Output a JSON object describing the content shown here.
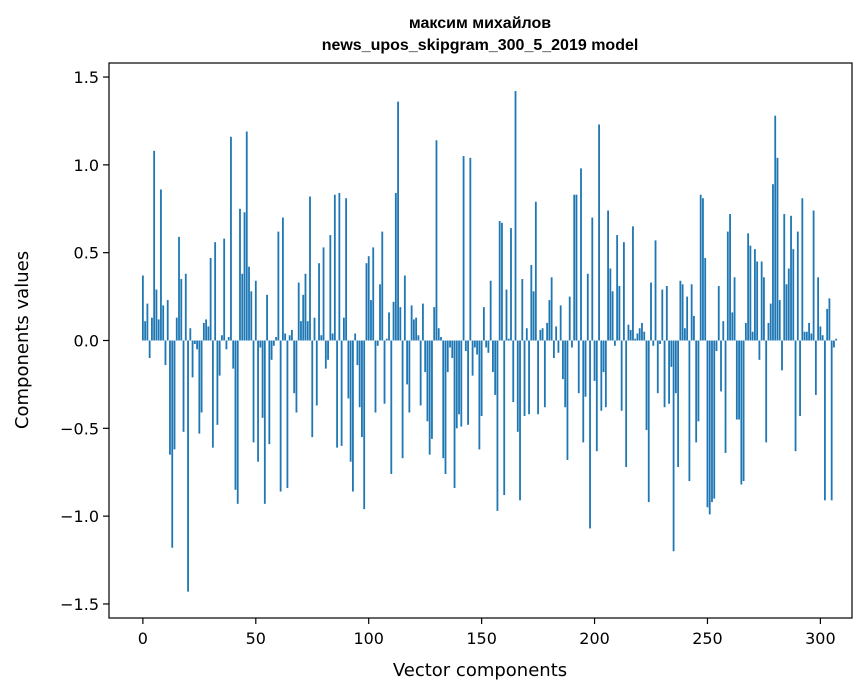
{
  "chart_data": {
    "type": "bar",
    "title": "максим михайлов",
    "subtitle": "news_upos_skipgram_300_5_2019 model",
    "xlabel": "Vector components",
    "ylabel": "Components values",
    "xlim": [
      -15,
      314
    ],
    "ylim": [
      -1.58,
      1.58
    ],
    "xticks": [
      0,
      50,
      100,
      150,
      200,
      250,
      300
    ],
    "xtick_labels": [
      "0",
      "50",
      "100",
      "150",
      "200",
      "250",
      "300"
    ],
    "yticks": [
      -1.5,
      -1.0,
      -0.5,
      0.0,
      0.5,
      1.0,
      1.5
    ],
    "ytick_labels": [
      "−1.5",
      "−1.0",
      "−0.5",
      "0.0",
      "0.5",
      "1.0",
      "1.5"
    ],
    "grid": false,
    "bar_color": "#1f77b4",
    "values": [
      0.37,
      0.11,
      0.21,
      -0.1,
      0.13,
      1.08,
      0.29,
      0.12,
      0.86,
      0.2,
      -0.14,
      0.23,
      -0.65,
      -1.18,
      -0.62,
      0.13,
      0.59,
      0.35,
      -0.52,
      0.38,
      -1.43,
      0.07,
      -0.21,
      -0.02,
      -0.05,
      -0.53,
      -0.41,
      0.1,
      0.12,
      0.08,
      0.47,
      -0.61,
      0.56,
      -0.48,
      -0.2,
      0.03,
      0.58,
      -0.05,
      0.02,
      1.16,
      -0.16,
      -0.85,
      -0.93,
      0.75,
      0.38,
      0.73,
      1.19,
      0.42,
      0.28,
      -0.58,
      0.34,
      -0.69,
      -0.04,
      -0.44,
      -0.93,
      0.26,
      -0.59,
      -0.11,
      -0.03,
      0.02,
      0.62,
      -0.86,
      0.7,
      0.04,
      -0.84,
      0.03,
      0.06,
      -0.3,
      -0.41,
      0.33,
      0.11,
      0.26,
      0.38,
      0.11,
      0.82,
      -0.55,
      0.13,
      -0.37,
      0.44,
      0.03,
      0.53,
      -0.16,
      -0.11,
      0.6,
      0.04,
      0.83,
      -0.61,
      0.84,
      -0.6,
      0.13,
      0.81,
      -0.33,
      -0.69,
      -0.86,
      0.04,
      -0.14,
      -0.38,
      -0.55,
      -0.96,
      0.44,
      0.48,
      0.23,
      0.53,
      -0.41,
      -0.03,
      0.32,
      0.62,
      -0.36,
      0.01,
      0.16,
      -0.76,
      0.22,
      0.84,
      1.36,
      0.19,
      -0.67,
      0.37,
      -0.25,
      -0.41,
      0.2,
      0.12,
      0.13,
      0.03,
      -0.37,
      0.21,
      -0.18,
      -0.46,
      -0.65,
      -0.56,
      0.19,
      1.14,
      0.07,
      0.02,
      -0.67,
      -0.76,
      -0.18,
      -0.04,
      -0.1,
      -0.84,
      -0.5,
      -0.42,
      -0.49,
      1.05,
      -0.06,
      -0.48,
      1.04,
      -0.2,
      -0.04,
      -0.08,
      -0.62,
      -0.43,
      0.19,
      -0.04,
      -0.07,
      0.34,
      -0.18,
      -0.31,
      -0.97,
      0.68,
      0.67,
      -0.88,
      0.29,
      0.01,
      0.64,
      -0.35,
      1.42,
      -0.52,
      -0.91,
      0.35,
      -0.43,
      0.07,
      -0.42,
      0.43,
      0.28,
      0.79,
      -0.42,
      0.06,
      0.07,
      -0.38,
      0.1,
      0.23,
      0.36,
      -0.1,
      0.08,
      -0.07,
      0.2,
      -0.22,
      -0.38,
      -0.68,
      0.25,
      -0.04,
      0.83,
      0.83,
      -0.3,
      0.98,
      -0.58,
      -0.32,
      0.38,
      -1.07,
      0.7,
      -0.23,
      -0.63,
      1.23,
      -0.4,
      -0.18,
      -0.38,
      0.74,
      0.41,
      0.28,
      -0.03,
      0.6,
      0.31,
      -0.4,
      0.56,
      -0.72,
      0.09,
      0.06,
      0.65,
      0.01,
      0.04,
      0.07,
      0.1,
      0.05,
      -0.51,
      -0.92,
      0.33,
      -0.03,
      0.57,
      -0.3,
      -0.02,
      0.29,
      -0.38,
      0.31,
      -0.36,
      -0.15,
      -1.2,
      -0.3,
      -0.72,
      0.34,
      0.32,
      0.07,
      0.25,
      -0.8,
      0.32,
      0.14,
      -0.58,
      -0.46,
      0.83,
      0.81,
      0.47,
      -0.95,
      -0.99,
      -0.92,
      -0.9,
      -0.06,
      0.31,
      -0.29,
      0.11,
      -0.64,
      0.62,
      0.72,
      0.16,
      0.36,
      -0.45,
      -0.45,
      -0.82,
      -0.8,
      0.1,
      0.61,
      0.54,
      0.05,
      0.52,
      0.45,
      -0.11,
      0.45,
      0.36,
      -0.58,
      0.1,
      0.21,
      0.89,
      1.28,
      1.04,
      0.23,
      -0.17,
      0.72,
      0.32,
      0.41,
      0.71,
      0.52,
      -0.63,
      0.62,
      -0.43,
      0.81,
      0.05,
      0.05,
      0.1,
      0.04,
      0.74,
      -0.31,
      0.36,
      0.08,
      0.03,
      -0.91,
      0.18,
      0.24,
      -0.91,
      -0.04,
      0.01
    ]
  }
}
